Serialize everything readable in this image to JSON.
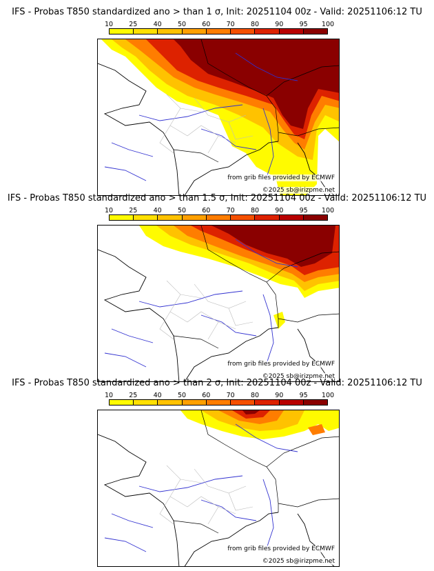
{
  "colorbar": {
    "ticks": [
      "10",
      "25",
      "40",
      "50",
      "60",
      "70",
      "80",
      "90",
      "95",
      "100"
    ],
    "colors": [
      "#fffb00",
      "#ffe000",
      "#ffc200",
      "#ffa000",
      "#ff7d00",
      "#f55000",
      "#dd2200",
      "#b80000",
      "#8a0000"
    ]
  },
  "panels": [
    {
      "title": "IFS - Probas T850  standardized ano > than 1 σ, Init: 20251104 00z - Valid: 20251106:12 TU",
      "credit_grib": "from grib files provided by ECMWF",
      "credit_copy": "©2025 sb@irizpme.net"
    },
    {
      "title": "IFS - Probas T850  standardized ano > than 1.5 σ, Init: 20251104 00z - Valid: 20251106:12 TU",
      "credit_grib": "from grib files provided by ECMWF",
      "credit_copy": "©2025 sb@irizpme.net"
    },
    {
      "title": "IFS - Probas T850  standardized ano > than 2 σ, Init: 20251104 00z - Valid: 20251106:12 TU",
      "credit_grib": "from grib files provided by ECMWF",
      "credit_copy": "©2025 sb@irizpme.net"
    }
  ]
}
